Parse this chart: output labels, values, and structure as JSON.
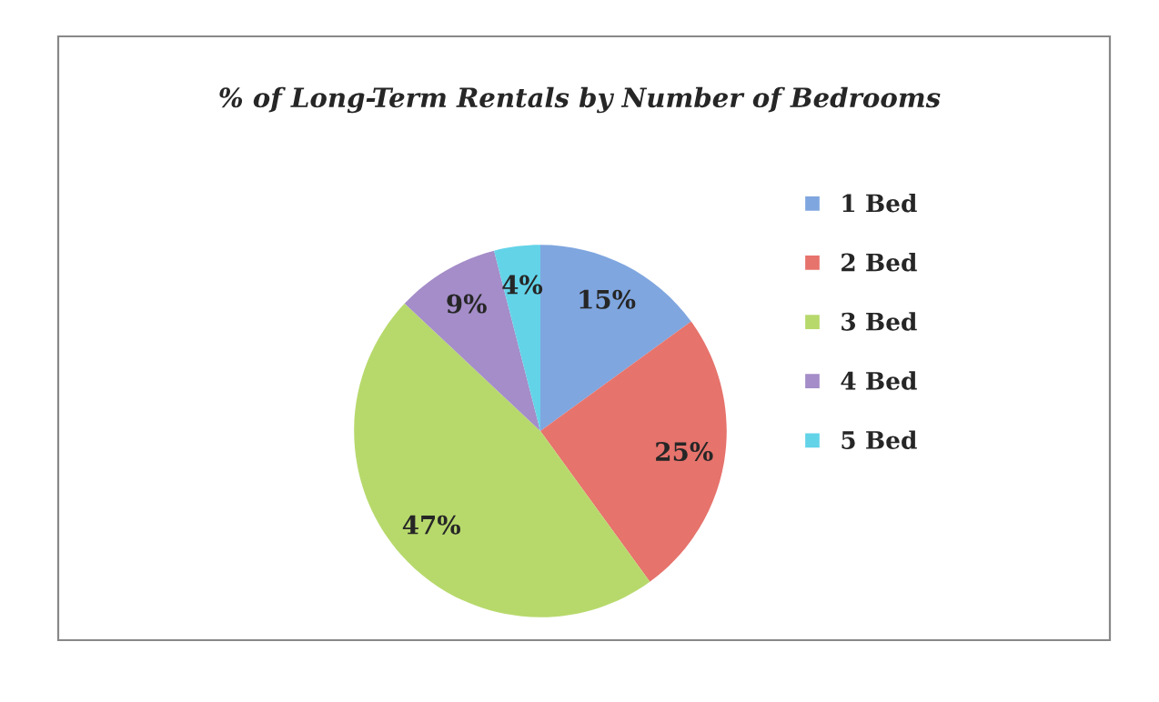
{
  "chart_data": {
    "type": "pie",
    "title": "% of Long-Term Rentals by Number of Bedrooms",
    "categories": [
      "1 Bed",
      "2 Bed",
      "3 Bed",
      "4 Bed",
      "5 Bed"
    ],
    "values": [
      15,
      25,
      47,
      9,
      4
    ],
    "value_labels": [
      "15%",
      "25%",
      "47%",
      "9%",
      "4%"
    ],
    "colors": [
      "#7fa6df",
      "#e6736c",
      "#b7d96c",
      "#a48dc8",
      "#63d3e8"
    ],
    "legend": "right"
  }
}
